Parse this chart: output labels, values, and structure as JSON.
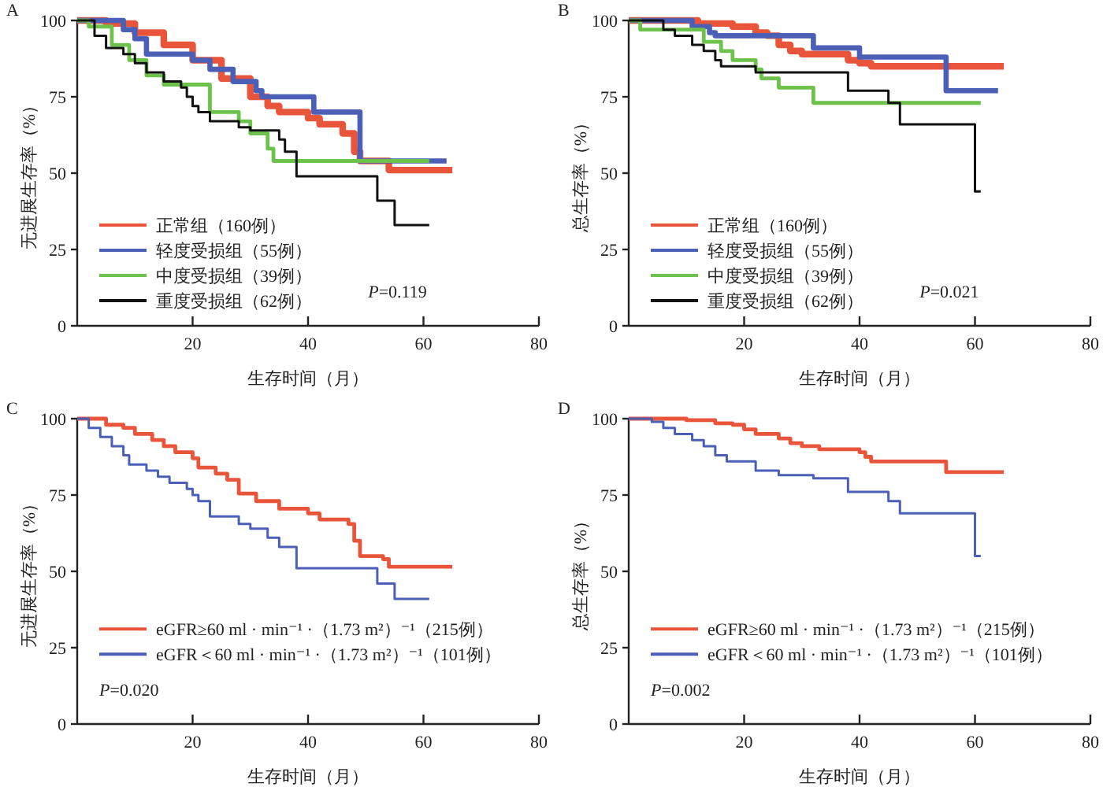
{
  "chart_data": [
    {
      "type": "step",
      "title": "A",
      "xlabel": "生存时间（月）",
      "ylabel": "无进展生存率（%）",
      "xlim": [
        0,
        80
      ],
      "xticks": [
        20,
        40,
        60,
        80
      ],
      "ylim": [
        0,
        100
      ],
      "yticks": [
        0,
        25,
        50,
        75,
        100
      ],
      "legend": "bottom left",
      "annotations": [
        "P=0.119"
      ],
      "series": [
        {
          "name": "正常组（160例）",
          "color": "#e8553a",
          "x": [
            0,
            5,
            10,
            15,
            20,
            25,
            30,
            33,
            35,
            40,
            42,
            46,
            48,
            49,
            54,
            65
          ],
          "values": [
            100,
            99,
            96,
            92,
            87,
            81,
            75,
            72,
            70,
            68,
            66,
            63,
            57,
            54,
            51,
            51
          ]
        },
        {
          "name": "轻度受损组（55例）",
          "color": "#4a5fb5",
          "x": [
            0,
            8,
            10,
            12,
            20,
            23,
            27,
            31,
            32,
            41,
            49,
            64
          ],
          "values": [
            100,
            97,
            94,
            89,
            87,
            84,
            80,
            77,
            75,
            70,
            54,
            54
          ]
        },
        {
          "name": "中度受损组（39例）",
          "color": "#6cc24a",
          "x": [
            0,
            2,
            6,
            9,
            12,
            15,
            23,
            28,
            30,
            33,
            34,
            61
          ],
          "values": [
            100,
            98,
            92,
            87,
            82,
            79,
            70,
            67,
            63,
            58,
            54,
            54
          ]
        },
        {
          "name": "重度受损组（62例）",
          "color": "#111111",
          "x": [
            0,
            3,
            5,
            8,
            10,
            12,
            15,
            18,
            19,
            20,
            21,
            23,
            28,
            30,
            35,
            36,
            38,
            52,
            55,
            61
          ],
          "values": [
            100,
            95,
            91,
            89,
            86,
            83,
            80,
            78,
            75,
            72,
            70,
            67,
            65,
            64,
            61,
            57,
            49,
            41,
            33,
            33
          ]
        }
      ]
    },
    {
      "type": "step",
      "title": "B",
      "xlabel": "生存时间（月）",
      "ylabel": "总生存率（%）",
      "xlim": [
        0,
        80
      ],
      "xticks": [
        20,
        40,
        60,
        80
      ],
      "ylim": [
        0,
        100
      ],
      "yticks": [
        0,
        25,
        50,
        75,
        100
      ],
      "legend": "bottom left",
      "annotations": [
        "P=0.021"
      ],
      "series": [
        {
          "name": "正常组（160例）",
          "color": "#e8553a",
          "x": [
            0,
            12,
            18,
            22,
            24,
            26,
            28,
            30,
            38,
            40,
            42,
            65
          ],
          "values": [
            100,
            99,
            98,
            96,
            95,
            92,
            90,
            89,
            87,
            86,
            85,
            85
          ]
        },
        {
          "name": "轻度受损组（55例）",
          "color": "#4a5fb5",
          "x": [
            0,
            11,
            14,
            15,
            32,
            40,
            55,
            64
          ],
          "values": [
            100,
            98,
            96,
            95,
            91,
            88,
            77,
            77
          ]
        },
        {
          "name": "中度受损组（39例）",
          "color": "#6cc24a",
          "x": [
            0,
            2,
            13,
            16,
            18,
            22,
            23,
            26,
            32,
            61
          ],
          "values": [
            100,
            97,
            93,
            90,
            87,
            84,
            81,
            78,
            73,
            73
          ]
        },
        {
          "name": "重度受损组（62例）",
          "color": "#111111",
          "x": [
            0,
            6,
            8,
            11,
            13,
            15,
            16,
            22,
            38,
            45,
            47,
            60,
            61
          ],
          "values": [
            100,
            97,
            95,
            92,
            90,
            87,
            85,
            83,
            77,
            73,
            66,
            44,
            44
          ]
        }
      ]
    },
    {
      "type": "step",
      "title": "C",
      "xlabel": "生存时间（月）",
      "ylabel": "无进展生存率（%）",
      "xlim": [
        0,
        80
      ],
      "xticks": [
        20,
        40,
        60,
        80
      ],
      "ylim": [
        0,
        100
      ],
      "yticks": [
        0,
        25,
        50,
        75,
        100
      ],
      "legend": "left",
      "annotations": [
        "P=0.020"
      ],
      "series": [
        {
          "name": "eGFR≥60 ml · min⁻¹ ·（1.73 m²）⁻¹（215例）",
          "color": "#e8553a",
          "x": [
            0,
            5,
            8,
            10,
            13,
            15,
            17,
            20,
            21,
            24,
            26,
            28,
            31,
            35,
            40,
            42,
            47,
            48,
            49,
            53,
            54,
            65
          ],
          "values": [
            100,
            98,
            97,
            95,
            93,
            91,
            89,
            87,
            84,
            82,
            80,
            75.5,
            73,
            70.5,
            69,
            67,
            65.5,
            60,
            55,
            54,
            51.5,
            51.5
          ]
        },
        {
          "name": "eGFR＜60 ml · min⁻¹ ·（1.73 m²）⁻¹（101例）",
          "color": "#4a5fb5",
          "x": [
            0,
            2,
            4,
            6,
            8,
            9,
            12,
            14,
            16,
            19,
            20,
            21,
            23,
            28,
            30,
            33,
            35,
            38,
            52,
            55,
            61
          ],
          "values": [
            100,
            97,
            94,
            91,
            88,
            85,
            83,
            81,
            79,
            77,
            75,
            73,
            68,
            65.5,
            64,
            61,
            58,
            51,
            46,
            41,
            41
          ]
        }
      ]
    },
    {
      "type": "step",
      "title": "D",
      "xlabel": "生存时间（月）",
      "ylabel": "总生存率（%）",
      "xlim": [
        0,
        80
      ],
      "xticks": [
        20,
        40,
        60,
        80
      ],
      "ylim": [
        0,
        100
      ],
      "yticks": [
        0,
        25,
        50,
        75,
        100
      ],
      "legend": "left",
      "annotations": [
        "P=0.002"
      ],
      "series": [
        {
          "name": "eGFR≥60 ml · min⁻¹ ·（1.73 m²）⁻¹（215例）",
          "color": "#e8553a",
          "x": [
            0,
            10,
            15,
            18,
            20,
            22,
            26,
            28,
            30,
            33,
            40,
            41,
            42,
            55,
            65
          ],
          "values": [
            100,
            99.5,
            98.5,
            98,
            96.5,
            95,
            93.5,
            92,
            91,
            90,
            89,
            87.5,
            86,
            82.5,
            82.5
          ]
        },
        {
          "name": "eGFR＜60 ml · min⁻¹ ·（1.73 m²）⁻¹（101例）",
          "color": "#4a5fb5",
          "x": [
            0,
            4,
            6,
            8,
            11,
            13,
            15,
            17,
            22,
            26,
            32,
            38,
            45,
            47,
            60,
            61
          ],
          "values": [
            100,
            99,
            97,
            95,
            93,
            91,
            88,
            86,
            83,
            81.5,
            80.5,
            76,
            73,
            69,
            55,
            55
          ]
        }
      ]
    }
  ]
}
